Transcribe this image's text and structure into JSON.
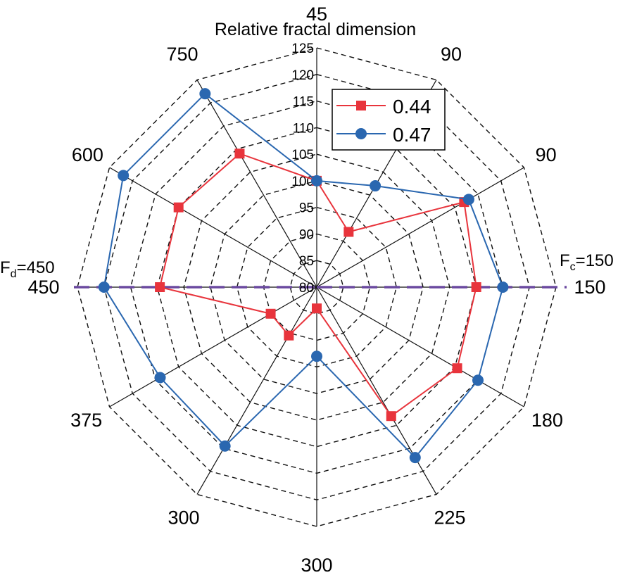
{
  "chart_data": {
    "type": "radar",
    "title": "Relative fractal dimension",
    "categories": [
      "45",
      "90",
      "90",
      "150",
      "180",
      "225",
      "300",
      "300",
      "375",
      "450",
      "600",
      "750"
    ],
    "radial_range": [
      80,
      125
    ],
    "radial_ticks": [
      "80",
      "85",
      "90",
      "95",
      "100",
      "105",
      "110",
      "115",
      "120",
      "125"
    ],
    "grid": "dashed",
    "legend_position": "top-right",
    "series": [
      {
        "name": "0.44",
        "marker": "square",
        "color": "#e8343c",
        "values": [
          100,
          92,
          112,
          110,
          110.5,
          108,
          84,
          90.5,
          90,
          109.5,
          110,
          109
        ]
      },
      {
        "name": "0.47",
        "marker": "circle",
        "color": "#2a67b0",
        "values": [
          100,
          102,
          113,
          115,
          115,
          117,
          93,
          114.5,
          114,
          120,
          122,
          122
        ]
      }
    ],
    "reference_lines": [
      {
        "label_main": "F",
        "label_sub": "c",
        "label_rest": "=150",
        "color": "#6b4aa0"
      },
      {
        "label_main": "F",
        "label_sub": "d",
        "label_rest": "=450",
        "color": "#6b4aa0"
      }
    ]
  }
}
